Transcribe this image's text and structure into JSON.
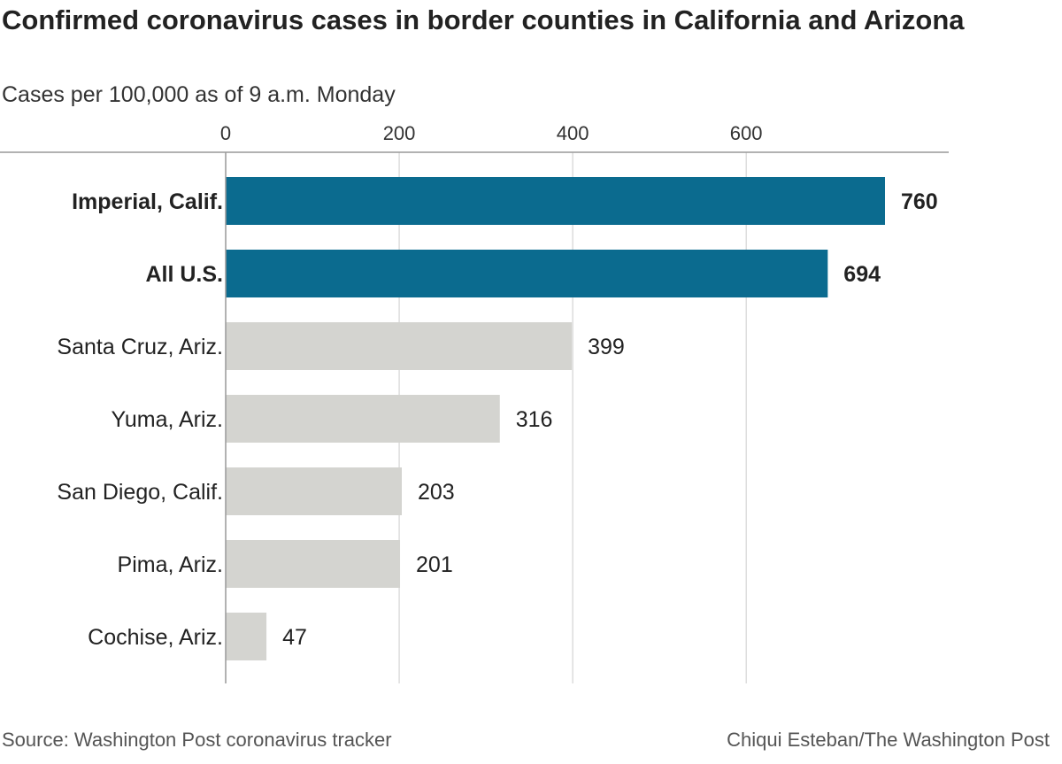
{
  "title": "Confirmed coronavirus cases in border counties in California and Arizona",
  "subtitle": "Cases per 100,000 as of 9 a.m. Monday",
  "source": "Source: Washington Post coronavirus tracker",
  "credit": "Chiqui Esteban/The Washington Post",
  "colors": {
    "highlight": "#0b6b8f",
    "default": "#d4d4d0",
    "grid": "#cccccc",
    "axis": "#999999"
  },
  "chart_data": {
    "type": "bar",
    "orientation": "horizontal",
    "title": "Confirmed coronavirus cases in border counties in California and Arizona",
    "subtitle": "Cases per 100,000 as of 9 a.m. Monday",
    "categories": [
      "Imperial, Calif.",
      "All U.S.",
      "Santa Cruz, Ariz.",
      "Yuma, Ariz.",
      "San Diego, Calif.",
      "Pima, Ariz.",
      "Cochise, Ariz."
    ],
    "values": [
      760,
      694,
      399,
      316,
      203,
      201,
      47
    ],
    "value_labels": [
      "760",
      "694",
      "399",
      "316",
      "203",
      "201",
      "47"
    ],
    "highlighted": [
      true,
      true,
      false,
      false,
      false,
      false,
      false
    ],
    "xlim": [
      0,
      835
    ],
    "ticks": [
      0,
      200,
      400,
      600
    ],
    "tick_labels": [
      "0",
      "200",
      "400",
      "600"
    ],
    "tick_position": "top",
    "grid": true,
    "legend": "none"
  }
}
